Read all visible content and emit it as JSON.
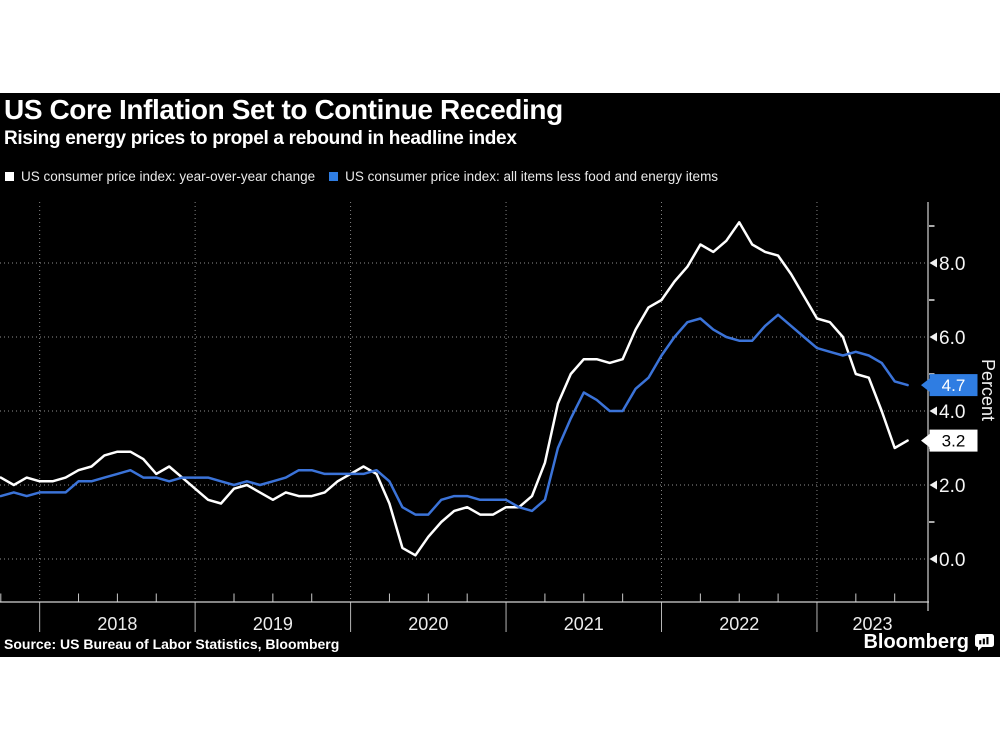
{
  "header": {
    "title": "US Core Inflation Set to Continue Receding",
    "subtitle": "Rising energy prices to propel a rebound in headline index"
  },
  "legend": [
    {
      "label": "US consumer price index: year-over-year change",
      "color": "#ffffff"
    },
    {
      "label": "US consumer price index: all items less food and energy items",
      "color": "#2f7de2"
    }
  ],
  "footer": {
    "source": "Source: US Bureau of Labor Statistics, Bloomberg",
    "brand": "Bloomberg",
    "brand_icon": "bloomberg-chart-bubble-icon"
  },
  "chart_data": {
    "type": "line",
    "title": "US Core Inflation Set to Continue Receding",
    "ylabel": "Percent",
    "ylim": [
      -1.1,
      9.7
    ],
    "grid": "dotted",
    "x_unit": "month",
    "x_start": "2017-09",
    "x_end": "2023-07",
    "year_labels": [
      "2018",
      "2019",
      "2020",
      "2021",
      "2022",
      "2023"
    ],
    "y_major_ticks": [
      {
        "value": 0,
        "label": "0.0"
      },
      {
        "value": 2,
        "label": "2.0"
      },
      {
        "value": 4,
        "label": "4.0"
      },
      {
        "value": 6,
        "label": "6.0"
      },
      {
        "value": 8,
        "label": "8.0"
      }
    ],
    "y_minor_ticks": [
      1,
      3,
      5,
      7,
      9
    ],
    "series": [
      {
        "name": "US consumer price index: year-over-year change",
        "color": "#ffffff",
        "end_label": {
          "text": "3.2",
          "bg": "#ffffff",
          "fg": "#000000"
        },
        "values": [
          2.2,
          2.0,
          2.2,
          2.1,
          2.1,
          2.2,
          2.4,
          2.5,
          2.8,
          2.9,
          2.9,
          2.7,
          2.3,
          2.5,
          2.2,
          1.9,
          1.6,
          1.5,
          1.9,
          2.0,
          1.8,
          1.6,
          1.8,
          1.7,
          1.7,
          1.8,
          2.1,
          2.3,
          2.5,
          2.3,
          1.5,
          0.3,
          0.1,
          0.6,
          1.0,
          1.3,
          1.4,
          1.2,
          1.2,
          1.4,
          1.4,
          1.7,
          2.6,
          4.2,
          5.0,
          5.4,
          5.4,
          5.3,
          5.4,
          6.2,
          6.8,
          7.0,
          7.5,
          7.9,
          8.5,
          8.3,
          8.6,
          9.1,
          8.5,
          8.3,
          8.2,
          7.7,
          7.1,
          6.5,
          6.4,
          6.0,
          5.0,
          4.9,
          4.0,
          3.0,
          3.2
        ]
      },
      {
        "name": "US consumer price index: all items less food and energy items",
        "color": "#3b73d8",
        "end_label": {
          "text": "4.7",
          "bg": "#2f7de2",
          "fg": "#ffffff"
        },
        "values": [
          1.7,
          1.8,
          1.7,
          1.8,
          1.8,
          1.8,
          2.1,
          2.1,
          2.2,
          2.3,
          2.4,
          2.2,
          2.2,
          2.1,
          2.2,
          2.2,
          2.2,
          2.1,
          2.0,
          2.1,
          2.0,
          2.1,
          2.2,
          2.4,
          2.4,
          2.3,
          2.3,
          2.3,
          2.3,
          2.4,
          2.1,
          1.4,
          1.2,
          1.2,
          1.6,
          1.7,
          1.7,
          1.6,
          1.6,
          1.6,
          1.4,
          1.3,
          1.6,
          3.0,
          3.8,
          4.5,
          4.3,
          4.0,
          4.0,
          4.6,
          4.9,
          5.5,
          6.0,
          6.4,
          6.5,
          6.2,
          6.0,
          5.9,
          5.9,
          6.3,
          6.6,
          6.3,
          6.0,
          5.7,
          5.6,
          5.5,
          5.6,
          5.5,
          5.3,
          4.8,
          4.7
        ]
      }
    ]
  }
}
